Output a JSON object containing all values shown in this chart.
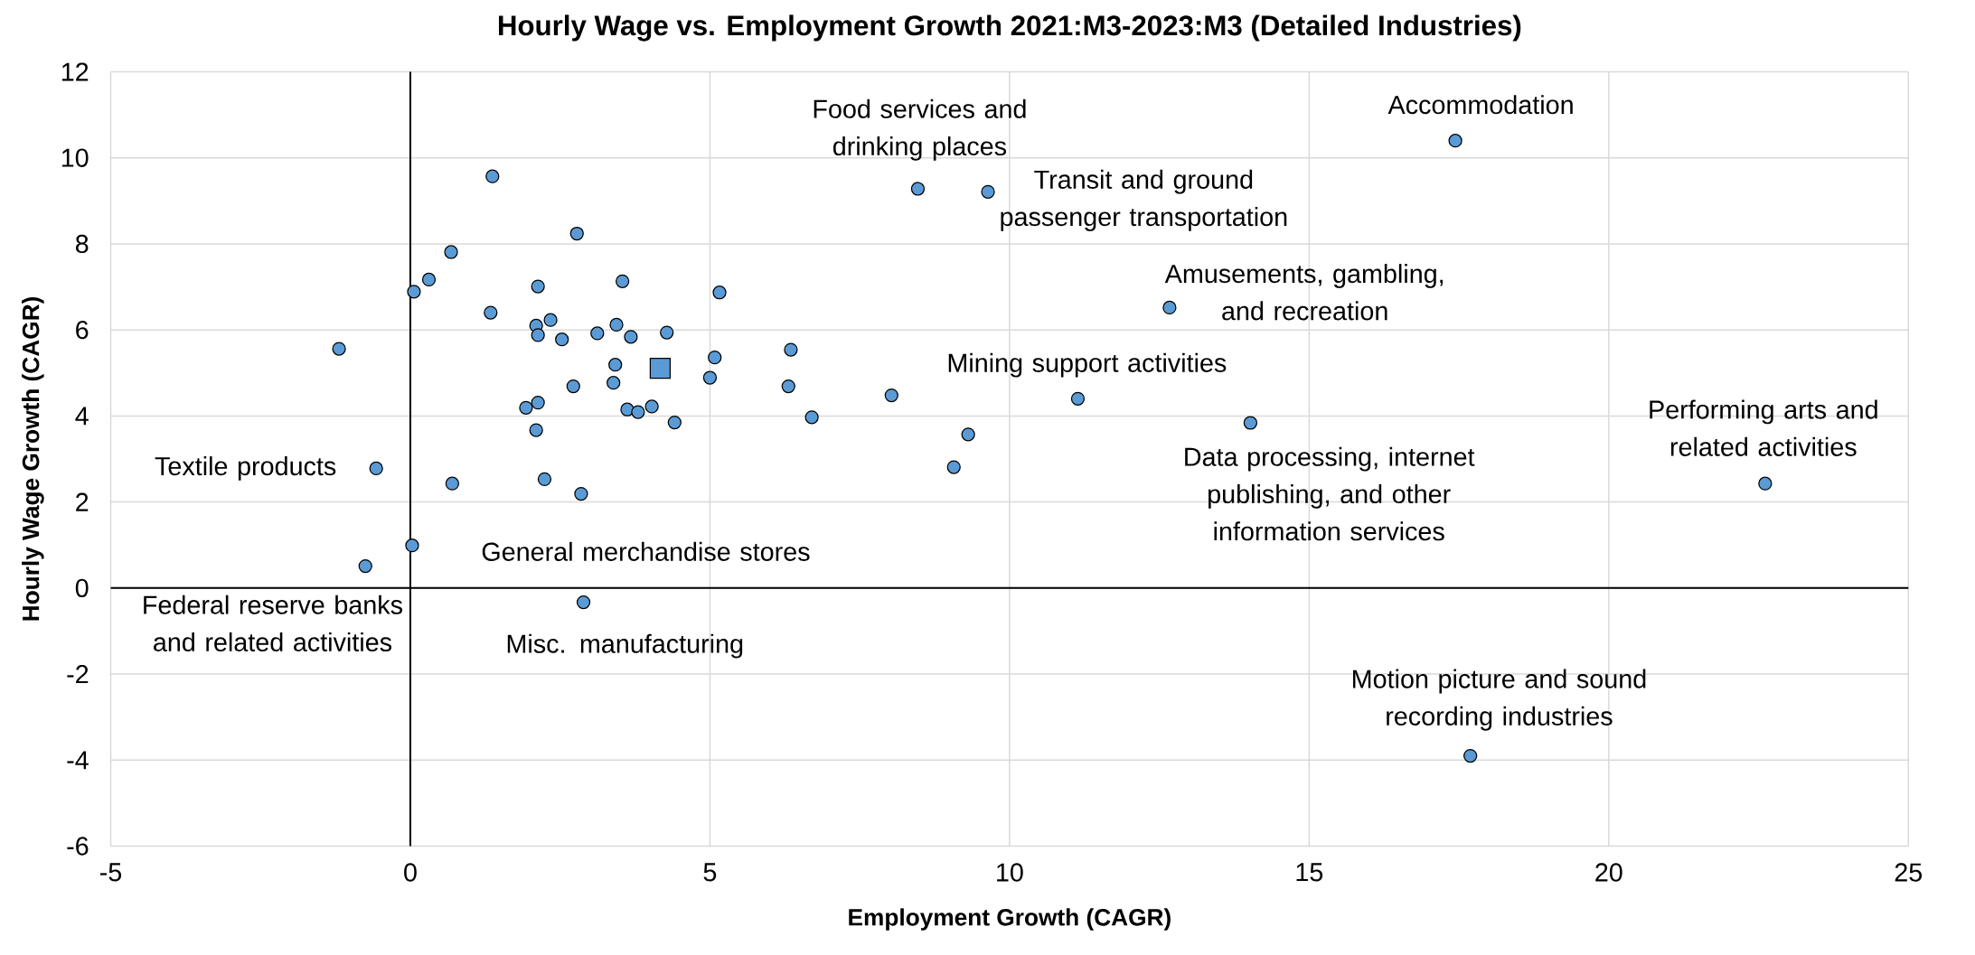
{
  "chart_data": {
    "type": "scatter",
    "title": "Hourly Wage vs. Employment Growth 2021:M3-2023:M3 (Detailed Industries)",
    "xlabel": "Employment Growth (CAGR)",
    "ylabel": "Hourly Wage Growth (CAGR)",
    "xlim": [
      -5,
      25
    ],
    "xticks": [
      -5,
      0,
      5,
      10,
      15,
      20,
      25
    ],
    "ylim": [
      -6,
      12
    ],
    "yticks": [
      -6,
      -4,
      -2,
      0,
      2,
      4,
      6,
      8,
      10,
      12
    ],
    "grid": true,
    "series": [
      {
        "color": "#5b9bd5",
        "marker": "circle",
        "x": [
          1.37,
          2.78,
          0.68,
          0.31,
          0.06,
          2.13,
          3.54,
          5.16,
          1.34,
          2.34,
          2.1,
          2.13,
          2.53,
          3.12,
          3.44,
          3.68,
          4.28,
          -1.19,
          6.35,
          5.08,
          3.42,
          5.0,
          3.39,
          2.72,
          6.31,
          2.13,
          1.93,
          3.62,
          3.8,
          4.03,
          4.41,
          6.7,
          2.1,
          -0.57,
          0.7,
          2.24,
          2.85,
          0.03,
          -0.75,
          2.89,
          17.44,
          8.47,
          9.64,
          12.67,
          8.03,
          11.14,
          9.31,
          9.07,
          14.02,
          22.61,
          17.69
        ],
        "values": [
          9.57,
          8.24,
          7.81,
          7.17,
          6.89,
          7.01,
          7.13,
          6.87,
          6.4,
          6.23,
          6.1,
          5.88,
          5.78,
          5.92,
          6.12,
          5.84,
          5.94,
          5.56,
          5.54,
          5.36,
          5.19,
          4.89,
          4.77,
          4.69,
          4.69,
          4.31,
          4.19,
          4.15,
          4.09,
          4.22,
          3.85,
          3.97,
          3.67,
          2.78,
          2.43,
          2.53,
          2.19,
          0.99,
          0.51,
          -0.33,
          10.4,
          9.28,
          9.21,
          6.52,
          4.48,
          4.4,
          3.57,
          2.81,
          3.84,
          2.43,
          -3.9
        ]
      },
      {
        "color": "#5b9bd5",
        "marker": "square",
        "x": [
          4.17
        ],
        "values": [
          5.11
        ]
      }
    ],
    "annotations": [
      {
        "text": "Food services and drinking places",
        "x": 8.47,
        "y": 9.28
      },
      {
        "text": "Transit and ground passenger transportation",
        "x": 9.64,
        "y": 9.21
      },
      {
        "text": "Accommodation",
        "x": 17.44,
        "y": 10.4
      },
      {
        "text": "Amusements, gambling, and recreation",
        "x": 12.67,
        "y": 6.52
      },
      {
        "text": "Mining support activities",
        "x": 11.14,
        "y": 4.4
      },
      {
        "text": "Performing arts and related activities",
        "x": 22.61,
        "y": 2.43
      },
      {
        "text": "Data processing, internet publishing, and other information services",
        "x": 14.02,
        "y": 3.84
      },
      {
        "text": "Motion picture and sound recording industries",
        "x": 17.69,
        "y": -3.9
      },
      {
        "text": "Textile products",
        "x": -0.57,
        "y": 2.78
      },
      {
        "text": "General merchandise stores",
        "x": 0.03,
        "y": 0.99
      },
      {
        "text": "Federal reserve banks and related activities",
        "x": -0.75,
        "y": 0.51
      },
      {
        "text": "Misc. manufacturing",
        "x": 2.89,
        "y": -0.33
      }
    ]
  }
}
